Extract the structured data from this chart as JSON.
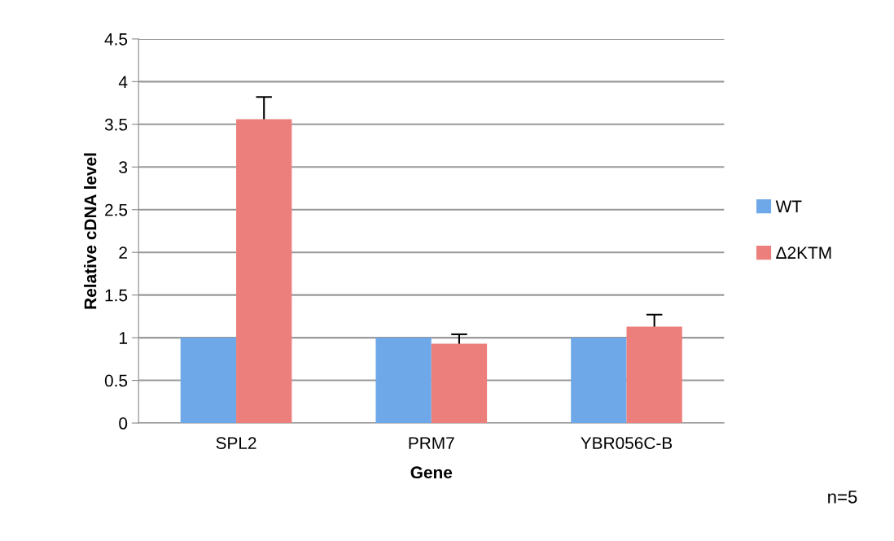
{
  "chart_data": {
    "type": "bar",
    "xlabel": "Gene",
    "ylabel": "Relative cDNA level",
    "categories": [
      "SPL2",
      "PRM7",
      "YBR056C-B"
    ],
    "series": [
      {
        "name": "WT",
        "color": "#6fa8e8",
        "values": [
          1,
          1,
          1
        ]
      },
      {
        "name": "Δ2KTM",
        "color": "#ec7f7c",
        "values": [
          3.56,
          0.93,
          1.13
        ],
        "errors": [
          0.26,
          0.11,
          0.14
        ]
      }
    ],
    "ylim": [
      0,
      4.5
    ],
    "yticks": [
      0,
      0.5,
      1,
      1.5,
      2,
      2.5,
      3,
      3.5,
      4,
      4.5
    ],
    "grid": "y",
    "legend": "right",
    "annotations": [
      "n=5"
    ]
  }
}
